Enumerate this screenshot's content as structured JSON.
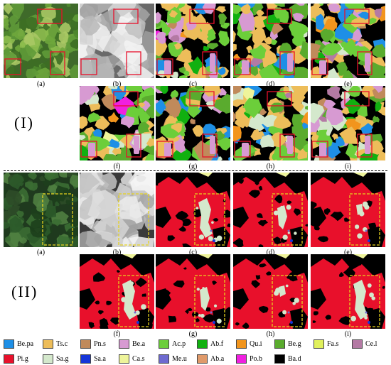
{
  "section_labels": {
    "top": "(I)",
    "bottom": "(II)"
  },
  "panel_captions": [
    "(a)",
    "(b)",
    "(c)",
    "(d)",
    "(e)",
    "(f)",
    "(g)",
    "(h)",
    "(i)"
  ],
  "legend": [
    {
      "label": "Be.pa",
      "color": "#1e8fe6"
    },
    {
      "label": "Ts.c",
      "color": "#edbd5a"
    },
    {
      "label": "Pn.s",
      "color": "#c08a5b"
    },
    {
      "label": "Be.a",
      "color": "#d79ad2"
    },
    {
      "label": "Ac.p",
      "color": "#6cce3a"
    },
    {
      "label": "Ab.f",
      "color": "#11b010"
    },
    {
      "label": "Qu.i",
      "color": "#f2951d"
    },
    {
      "label": "Be.g",
      "color": "#5aab2e"
    },
    {
      "label": "Fa.s",
      "color": "#e0f05c"
    },
    {
      "label": "Ce.l",
      "color": "#b47aa4"
    },
    {
      "label": "Pi.g",
      "color": "#e8102b"
    },
    {
      "label": "Sa.g",
      "color": "#d4e8cc"
    },
    {
      "label": "Sa.a",
      "color": "#1535d8"
    },
    {
      "label": "Ca.s",
      "color": "#eef49a"
    },
    {
      "label": "Me.u",
      "color": "#6e6ad0"
    },
    {
      "label": "Ab.a",
      "color": "#e09a6a"
    },
    {
      "label": "Po.b",
      "color": "#f020e0"
    },
    {
      "label": "Ba.d",
      "color": "#000000"
    }
  ],
  "highlight_colors": {
    "top": "#e8102b",
    "bottom": "#e6d21e"
  }
}
